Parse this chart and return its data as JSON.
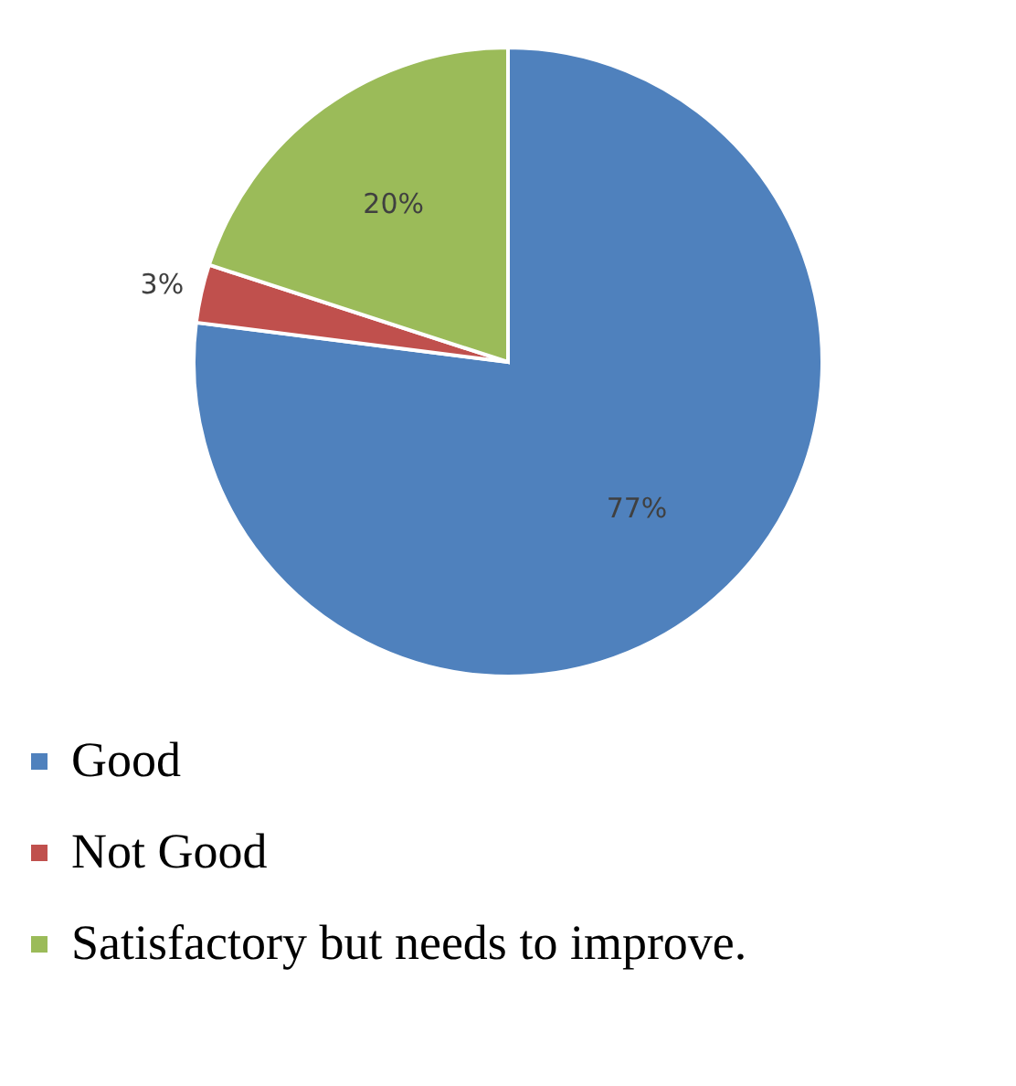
{
  "chart_data": {
    "type": "pie",
    "categories": [
      "Good",
      "Not Good",
      "Satisfactory but needs to improve."
    ],
    "values": [
      77,
      3,
      20
    ],
    "colors": [
      "#4f81bd",
      "#c0504d",
      "#9bbb59"
    ],
    "value_labels": [
      "77%",
      "3%",
      "20%"
    ],
    "legend": "bottom"
  }
}
